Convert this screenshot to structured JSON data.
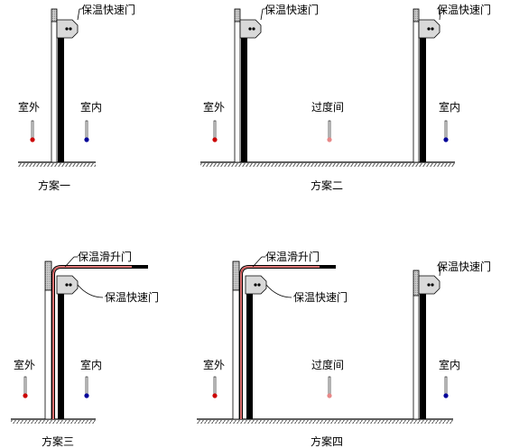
{
  "labels": {
    "fast_door": "保温快速门",
    "sliding_door": "保温滑升门",
    "outdoor": "室外",
    "indoor": "室内",
    "transition": "过度间"
  },
  "schemes": [
    "方案一",
    "方案二",
    "方案三",
    "方案四"
  ],
  "colors": {
    "line": "#000000",
    "door_pink": "#e8a0a0",
    "door_red": "#c00000",
    "thermo_outdoor": "#cc0000",
    "thermo_indoor": "#000099",
    "thermo_transition": "#e88888",
    "bracket_fill": "#d9d9d9",
    "hatch": "#555555"
  }
}
